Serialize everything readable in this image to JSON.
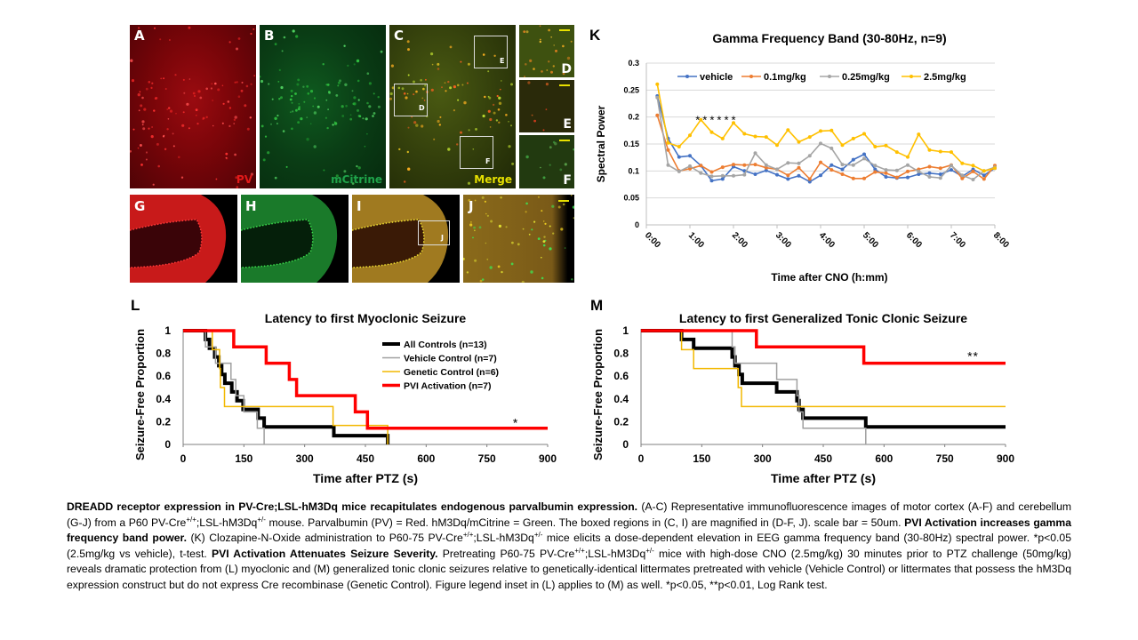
{
  "figure": {
    "panels": {
      "A": {
        "letter": "A",
        "channel": "PV",
        "channel_color": "#e31a1a"
      },
      "B": {
        "letter": "B",
        "channel": "mCitrine",
        "channel_color": "#1fa34a"
      },
      "C": {
        "letter": "C",
        "channel": "Merge",
        "channel_color": "#e6e000",
        "boxes": [
          "D",
          "E",
          "F"
        ]
      },
      "D": {
        "letter": "D"
      },
      "E": {
        "letter": "E"
      },
      "F": {
        "letter": "F"
      },
      "G": {
        "letter": "G"
      },
      "H": {
        "letter": "H"
      },
      "I": {
        "letter": "I",
        "boxes": [
          "J"
        ]
      },
      "J": {
        "letter": "J"
      }
    },
    "K_letter": "K",
    "L_letter": "L",
    "M_letter": "M"
  },
  "chart_data": [
    {
      "id": "K",
      "type": "line",
      "title": "Gamma Frequency Band (30-80Hz, n=9)",
      "xlabel": "Time after CNO (h:mm)",
      "ylabel": "Spectral Power",
      "ylim": [
        0,
        0.3
      ],
      "yticks": [
        "0",
        "0.05",
        "0.1",
        "0.15",
        "0.2",
        "0.25",
        "0.3"
      ],
      "xticks": [
        "0:00",
        "1:00",
        "2:00",
        "3:00",
        "4:00",
        "5:00",
        "6:00",
        "7:00",
        "8:00"
      ],
      "xlim_hours": [
        0,
        8
      ],
      "grid": true,
      "legend": "top",
      "annotation": "******",
      "x_hours": [
        0.25,
        0.5,
        0.75,
        1.0,
        1.25,
        1.5,
        1.75,
        2.0,
        2.25,
        2.5,
        2.75,
        3.0,
        3.25,
        3.5,
        3.75,
        4.0,
        4.25,
        4.5,
        4.75,
        5.0,
        5.25,
        5.5,
        5.75,
        6.0,
        6.25,
        6.5,
        6.75,
        7.0,
        7.25,
        7.5,
        7.75,
        8.0
      ],
      "series": [
        {
          "name": "vehicle",
          "color": "#4472c4",
          "values": [
            0.239,
            0.16,
            0.126,
            0.128,
            0.11,
            0.082,
            0.085,
            0.108,
            0.1,
            0.094,
            0.101,
            0.093,
            0.085,
            0.091,
            0.08,
            0.092,
            0.111,
            0.103,
            0.121,
            0.131,
            0.103,
            0.089,
            0.087,
            0.088,
            0.094,
            0.096,
            0.094,
            0.102,
            0.09,
            0.103,
            0.092,
            0.105
          ]
        },
        {
          "name": "0.1mg/kg",
          "color": "#ed7d31",
          "values": [
            0.203,
            0.139,
            0.1,
            0.104,
            0.11,
            0.098,
            0.107,
            0.112,
            0.111,
            0.112,
            0.106,
            0.103,
            0.092,
            0.106,
            0.085,
            0.116,
            0.102,
            0.094,
            0.086,
            0.086,
            0.098,
            0.096,
            0.088,
            0.099,
            0.103,
            0.108,
            0.105,
            0.111,
            0.086,
            0.099,
            0.085,
            0.11
          ]
        },
        {
          "name": "0.25mg/kg",
          "color": "#a5a5a5",
          "values": [
            0.236,
            0.111,
            0.099,
            0.109,
            0.096,
            0.09,
            0.091,
            0.091,
            0.093,
            0.133,
            0.111,
            0.103,
            0.115,
            0.114,
            0.128,
            0.151,
            0.142,
            0.112,
            0.111,
            0.123,
            0.11,
            0.102,
            0.101,
            0.111,
            0.099,
            0.089,
            0.087,
            0.11,
            0.092,
            0.084,
            0.1,
            0.107
          ]
        },
        {
          "name": "2.5mg/kg",
          "color": "#ffc000",
          "values": [
            0.261,
            0.152,
            0.145,
            0.166,
            0.195,
            0.172,
            0.16,
            0.189,
            0.169,
            0.164,
            0.163,
            0.148,
            0.176,
            0.154,
            0.163,
            0.174,
            0.175,
            0.148,
            0.16,
            0.169,
            0.145,
            0.147,
            0.135,
            0.126,
            0.168,
            0.139,
            0.136,
            0.135,
            0.114,
            0.11,
            0.1,
            0.105
          ]
        }
      ]
    },
    {
      "id": "L",
      "type": "line",
      "step": true,
      "title": "Latency to first Myoclonic Seizure",
      "xlabel": "Time after PTZ (s)",
      "ylabel": "Seizure-Free Proportion",
      "xlim": [
        0,
        900
      ],
      "ylim": [
        0,
        1
      ],
      "xticks": [
        "0",
        "150",
        "300",
        "450",
        "600",
        "750",
        "900"
      ],
      "yticks": [
        "0",
        "0.2",
        "0.4",
        "0.6",
        "0.8",
        "1"
      ],
      "annotation": "*",
      "legend": "top-right",
      "series": [
        {
          "name": "All Controls (n=13)",
          "color": "#000000",
          "points": [
            [
              0,
              1
            ],
            [
              55,
              1
            ],
            [
              55,
              0.923
            ],
            [
              65,
              0.923
            ],
            [
              65,
              0.846
            ],
            [
              78,
              0.846
            ],
            [
              78,
              0.769
            ],
            [
              88,
              0.769
            ],
            [
              88,
              0.692
            ],
            [
              95,
              0.692
            ],
            [
              95,
              0.615
            ],
            [
              103,
              0.615
            ],
            [
              103,
              0.538
            ],
            [
              120,
              0.538
            ],
            [
              120,
              0.462
            ],
            [
              133,
              0.462
            ],
            [
              133,
              0.385
            ],
            [
              148,
              0.385
            ],
            [
              148,
              0.308
            ],
            [
              185,
              0.308
            ],
            [
              185,
              0.231
            ],
            [
              200,
              0.231
            ],
            [
              200,
              0.154
            ],
            [
              372,
              0.154
            ],
            [
              372,
              0.077
            ],
            [
              505,
              0.077
            ],
            [
              505,
              0
            ]
          ]
        },
        {
          "name": "Vehicle Control (n=7)",
          "color": "#a0a0a0",
          "points": [
            [
              0,
              1
            ],
            [
              55,
              1
            ],
            [
              55,
              0.857
            ],
            [
              80,
              0.857
            ],
            [
              80,
              0.714
            ],
            [
              118,
              0.714
            ],
            [
              118,
              0.571
            ],
            [
              130,
              0.571
            ],
            [
              130,
              0.429
            ],
            [
              150,
              0.429
            ],
            [
              150,
              0.286
            ],
            [
              183,
              0.286
            ],
            [
              183,
              0.143
            ],
            [
              200,
              0.143
            ],
            [
              200,
              0
            ]
          ]
        },
        {
          "name": "Genetic Control (n=6)",
          "color": "#f2b800",
          "points": [
            [
              0,
              1
            ],
            [
              72,
              1
            ],
            [
              72,
              0.833
            ],
            [
              90,
              0.833
            ],
            [
              90,
              0.667
            ],
            [
              92,
              0.667
            ],
            [
              92,
              0.5
            ],
            [
              102,
              0.5
            ],
            [
              102,
              0.333
            ],
            [
              370,
              0.333
            ],
            [
              370,
              0.167
            ],
            [
              505,
              0.167
            ],
            [
              505,
              0
            ]
          ]
        },
        {
          "name": "PVI Activation (n=7)",
          "color": "#ff0000",
          "points": [
            [
              0,
              1
            ],
            [
              125,
              1
            ],
            [
              125,
              0.857
            ],
            [
              205,
              0.857
            ],
            [
              205,
              0.714
            ],
            [
              262,
              0.714
            ],
            [
              262,
              0.571
            ],
            [
              280,
              0.571
            ],
            [
              280,
              0.429
            ],
            [
              425,
              0.429
            ],
            [
              425,
              0.286
            ],
            [
              455,
              0.286
            ],
            [
              455,
              0.143
            ],
            [
              900,
              0.143
            ]
          ]
        }
      ]
    },
    {
      "id": "M",
      "type": "line",
      "step": true,
      "title": "Latency to first Generalized Tonic Clonic Seizure",
      "xlabel": "Time after PTZ (s)",
      "ylabel": "Seizure-Free Proportion",
      "xlim": [
        0,
        900
      ],
      "ylim": [
        0,
        1
      ],
      "xticks": [
        "0",
        "150",
        "300",
        "450",
        "600",
        "750",
        "900"
      ],
      "yticks": [
        "0",
        "0.2",
        "0.4",
        "0.6",
        "0.8",
        "1"
      ],
      "annotation": "**",
      "series": [
        {
          "name": "All Controls (n=13)",
          "color": "#000000",
          "points": [
            [
              0,
              1
            ],
            [
              100,
              1
            ],
            [
              100,
              0.923
            ],
            [
              130,
              0.923
            ],
            [
              130,
              0.846
            ],
            [
              225,
              0.846
            ],
            [
              225,
              0.769
            ],
            [
              232,
              0.769
            ],
            [
              232,
              0.692
            ],
            [
              242,
              0.692
            ],
            [
              242,
              0.615
            ],
            [
              250,
              0.615
            ],
            [
              250,
              0.538
            ],
            [
              335,
              0.538
            ],
            [
              335,
              0.462
            ],
            [
              385,
              0.462
            ],
            [
              385,
              0.385
            ],
            [
              390,
              0.385
            ],
            [
              390,
              0.308
            ],
            [
              400,
              0.308
            ],
            [
              400,
              0.231
            ],
            [
              555,
              0.231
            ],
            [
              555,
              0.154
            ],
            [
              900,
              0.154
            ]
          ]
        },
        {
          "name": "Vehicle Control (n=7)",
          "color": "#a0a0a0",
          "points": [
            [
              0,
              1
            ],
            [
              225,
              1
            ],
            [
              225,
              0.857
            ],
            [
              232,
              0.857
            ],
            [
              232,
              0.714
            ],
            [
              335,
              0.714
            ],
            [
              335,
              0.571
            ],
            [
              385,
              0.571
            ],
            [
              385,
              0.429
            ],
            [
              390,
              0.429
            ],
            [
              390,
              0.286
            ],
            [
              400,
              0.286
            ],
            [
              400,
              0.143
            ],
            [
              555,
              0.143
            ],
            [
              555,
              0
            ]
          ]
        },
        {
          "name": "Genetic Control (n=6)",
          "color": "#f2b800",
          "points": [
            [
              0,
              1
            ],
            [
              100,
              1
            ],
            [
              100,
              0.833
            ],
            [
              130,
              0.833
            ],
            [
              130,
              0.667
            ],
            [
              240,
              0.667
            ],
            [
              240,
              0.5
            ],
            [
              248,
              0.5
            ],
            [
              248,
              0.333
            ],
            [
              900,
              0.333
            ]
          ]
        },
        {
          "name": "PVI Activation (n=7)",
          "color": "#ff0000",
          "points": [
            [
              0,
              1
            ],
            [
              285,
              1
            ],
            [
              285,
              0.857
            ],
            [
              550,
              0.857
            ],
            [
              550,
              0.714
            ],
            [
              900,
              0.714
            ]
          ]
        }
      ]
    }
  ],
  "caption": {
    "t1_bold": "DREADD receptor expression in PV-Cre;LSL-hM3Dq mice recapitulates endogenous parvalbumin expression.",
    "t2": " (A-C) Representative immunofluorescence images of motor cortex (A-F) and cerebellum (G-J) from a P60 PV-Cre",
    "sup1": "+/+",
    "t3": ";LSL-hM3Dq",
    "sup2": "+/-",
    "t4": " mouse. Parvalbumin (PV) = Red. hM3Dq/mCitrine = Green. The boxed regions in (C, I) are magnified in (D-F, J). scale bar = 50um. ",
    "t5_bold": "PVI Activation increases gamma frequency band power.",
    "t6": " (K) Clozapine-N-Oxide administration to P60-75 PV-Cre",
    "sup3": "+/+",
    "t7": ";LSL-hM3Dq",
    "sup4": "+/-",
    "t8": " mice elicits a dose-dependent elevation in EEG gamma frequency band (30-80Hz) spectral power. *p<0.05 (2.5mg/kg vs vehicle), t-test. ",
    "t9_bold": "PVI Activation Attenuates Seizure Severity.",
    "t10": " Pretreating P60-75 PV-Cre",
    "sup5": "+/+",
    "t11": ";LSL-hM3Dq",
    "sup6": "+/-",
    "t12": " mice with high-dose CNO (2.5mg/kg) 30 minutes prior to PTZ challenge (50mg/kg) reveals dramatic protection from (L) myoclonic and (M) generalized tonic clonic seizures relative to genetically-identical littermates pretreated with vehicle (Vehicle Control) or littermates that possess the hM3Dq expression construct but do not express Cre recombinase (Genetic Control). Figure legend inset in (L) applies to (M) as well. *p<0.05, **p<0.01, Log Rank test."
  }
}
